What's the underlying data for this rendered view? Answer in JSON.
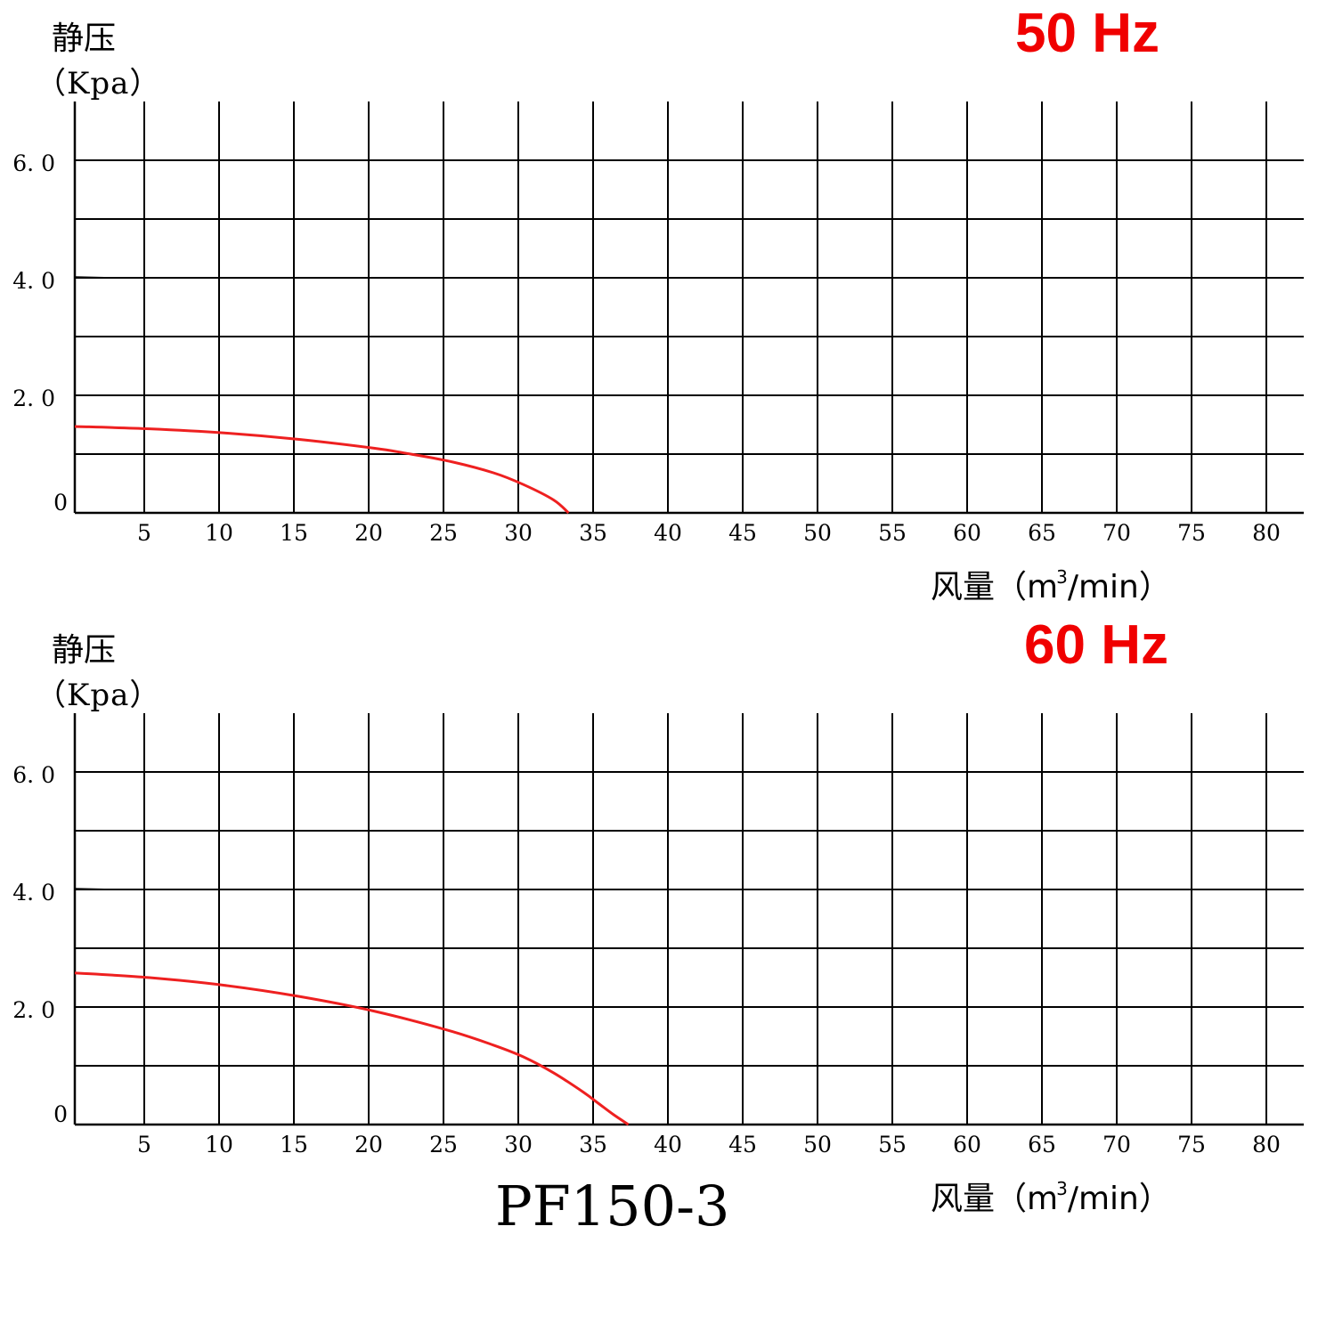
{
  "chart_data": [
    {
      "type": "line",
      "frequency_label": "50 Hz",
      "ylabel_cn": "静压",
      "ylabel_unit": "（Kpa）",
      "xlabel_main": "风量（m",
      "xlabel_sup": "3",
      "xlabel_tail": "/min）",
      "xlim": [
        0,
        82
      ],
      "ylim": [
        0,
        7
      ],
      "x_ticks": [
        5,
        10,
        15,
        20,
        25,
        30,
        35,
        40,
        45,
        50,
        55,
        60,
        65,
        70,
        75,
        80
      ],
      "y_ticks": [
        {
          "value": 6,
          "label": "6. 0"
        },
        {
          "value": 4,
          "label": "4. 0"
        },
        {
          "value": 2,
          "label": "2. 0"
        },
        {
          "value": 0,
          "label": "0"
        }
      ],
      "grid": true,
      "curve_color": "#ee2020",
      "x": [
        0,
        5,
        10,
        15,
        20,
        22,
        25,
        28,
        30,
        32,
        33
      ],
      "y": [
        1.47,
        1.43,
        1.36,
        1.25,
        1.1,
        1.02,
        0.88,
        0.68,
        0.48,
        0.22,
        0.0
      ]
    },
    {
      "type": "line",
      "frequency_label": "60 Hz",
      "ylabel_cn": "静压",
      "ylabel_unit": "（Kpa）",
      "xlabel_main": "风量（m",
      "xlabel_sup": "3",
      "xlabel_tail": "/min）",
      "xlim": [
        0,
        82
      ],
      "ylim": [
        0,
        7
      ],
      "x_ticks": [
        5,
        10,
        15,
        20,
        25,
        30,
        35,
        40,
        45,
        50,
        55,
        60,
        65,
        70,
        75,
        80
      ],
      "y_ticks": [
        {
          "value": 6,
          "label": "6. 0"
        },
        {
          "value": 4,
          "label": "4. 0"
        },
        {
          "value": 2,
          "label": "2. 0"
        },
        {
          "value": 0,
          "label": "0"
        }
      ],
      "grid": true,
      "curve_color": "#ee2020",
      "x": [
        0,
        5,
        10,
        15,
        20,
        25,
        28,
        30,
        32,
        34,
        35,
        36,
        37
      ],
      "y": [
        2.58,
        2.5,
        2.37,
        2.18,
        1.93,
        1.6,
        1.35,
        1.15,
        0.88,
        0.55,
        0.36,
        0.17,
        0.0
      ]
    }
  ],
  "model_name": "PF150-3"
}
